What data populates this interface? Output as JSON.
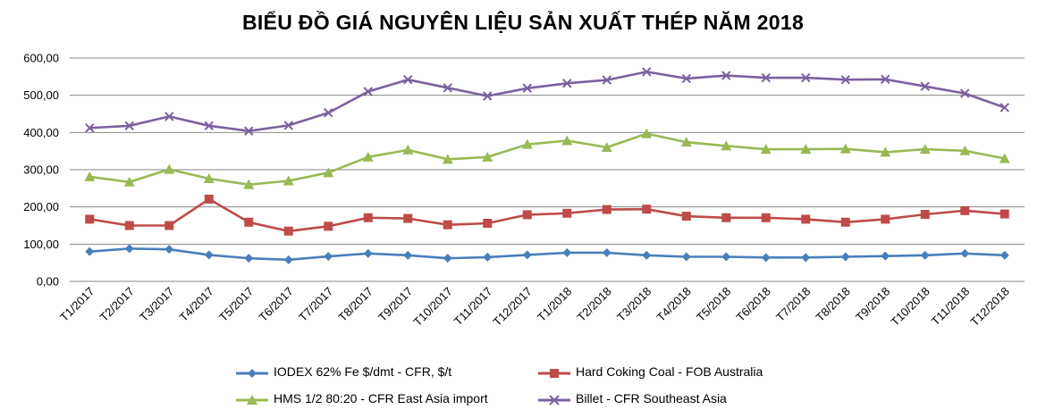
{
  "chart_data": {
    "type": "line",
    "title": "BIỂU ĐỒ GIÁ NGUYÊN LIỆU SẢN XUẤT THÉP NĂM 2018",
    "categories": [
      "T1/2017",
      "T2/2017",
      "T3/2017",
      "T4/2017",
      "T5/2017",
      "T6/2017",
      "T7/2017",
      "T8/2017",
      "T9/2017",
      "T10/2017",
      "T11/2017",
      "T12/2017",
      "T1/2018",
      "T2/2018",
      "T3/2018",
      "T4/2018",
      "T5/2018",
      "T6/2018",
      "T7/2018",
      "T8/2018",
      "T9/2018",
      "T10/2018",
      "T11/2018",
      "T12/2018"
    ],
    "y_ticks": [
      "0,00",
      "100,00",
      "200,00",
      "300,00",
      "400,00",
      "500,00",
      "600,00"
    ],
    "ylim": [
      0,
      600
    ],
    "grid": true,
    "legend_position": "bottom",
    "series": [
      {
        "name": "IODEX 62% Fe $/dmt - CFR, $/t",
        "color": "#4a7ebb",
        "marker": "diamond",
        "values": [
          80,
          88,
          86,
          71,
          62,
          58,
          67,
          75,
          70,
          62,
          65,
          71,
          77,
          77,
          70,
          66,
          66,
          64,
          64,
          66,
          68,
          70,
          75,
          70
        ]
      },
      {
        "name": "Hard Coking Coal - FOB Australia",
        "color": "#be4b48",
        "marker": "square",
        "values": [
          167,
          150,
          150,
          221,
          159,
          135,
          148,
          171,
          169,
          152,
          156,
          179,
          183,
          193,
          194,
          175,
          171,
          171,
          167,
          159,
          167,
          180,
          190,
          181
        ]
      },
      {
        "name": "HMS 1/2 80:20 - CFR East Asia import",
        "color": "#98b954",
        "marker": "triangle",
        "values": [
          281,
          267,
          301,
          276,
          260,
          270,
          292,
          334,
          353,
          328,
          334,
          368,
          378,
          360,
          397,
          374,
          364,
          355,
          355,
          356,
          347,
          355,
          351,
          330
        ]
      },
      {
        "name": "Billet - CFR Southeast Asia",
        "color": "#7d60a0",
        "marker": "x",
        "values": [
          412,
          418,
          443,
          418,
          404,
          419,
          453,
          510,
          542,
          520,
          498,
          519,
          532,
          541,
          563,
          545,
          553,
          547,
          547,
          542,
          543,
          524,
          505,
          467
        ]
      }
    ]
  }
}
